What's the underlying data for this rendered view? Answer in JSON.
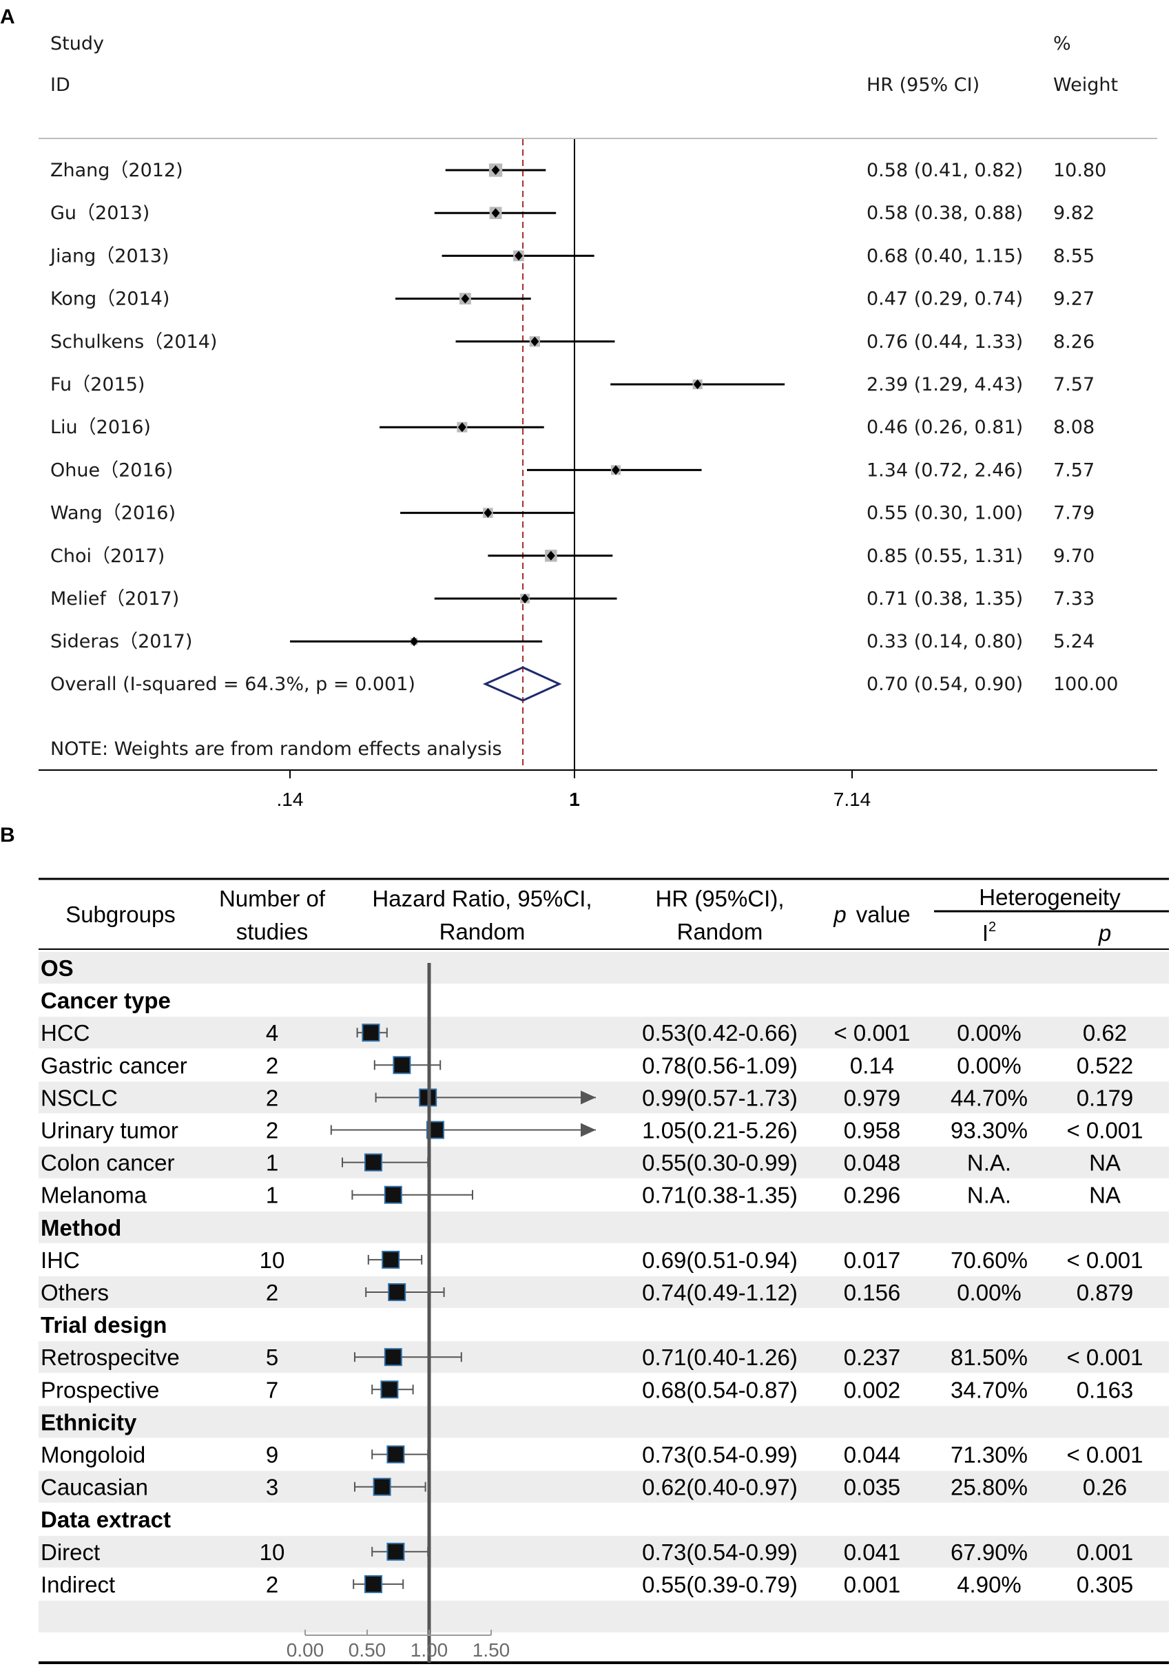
{
  "chart_data": [
    {
      "type": "forest",
      "panel_label": "A",
      "scale": "log",
      "header": {
        "study_line1": "Study",
        "study_line2": "ID",
        "ci_header": "HR (95% CI)",
        "weight_line1": "%",
        "weight_line2": "Weight"
      },
      "studies": [
        {
          "label": "Zhang（2012)",
          "hr": 0.58,
          "lo": 0.41,
          "hi": 0.82,
          "text": "0.58 (0.41, 0.82)",
          "weight": "10.80"
        },
        {
          "label": "Gu（2013)",
          "hr": 0.58,
          "lo": 0.38,
          "hi": 0.88,
          "text": "0.58 (0.38, 0.88)",
          "weight": "9.82"
        },
        {
          "label": "Jiang（2013)",
          "hr": 0.68,
          "lo": 0.4,
          "hi": 1.15,
          "text": "0.68 (0.40, 1.15)",
          "weight": "8.55"
        },
        {
          "label": "Kong（2014)",
          "hr": 0.47,
          "lo": 0.29,
          "hi": 0.74,
          "text": "0.47 (0.29, 0.74)",
          "weight": "9.27"
        },
        {
          "label": "Schulkens（2014)",
          "hr": 0.76,
          "lo": 0.44,
          "hi": 1.33,
          "text": "0.76 (0.44, 1.33)",
          "weight": "8.26"
        },
        {
          "label": "Fu（2015)",
          "hr": 2.39,
          "lo": 1.29,
          "hi": 4.43,
          "text": "2.39 (1.29, 4.43)",
          "weight": "7.57"
        },
        {
          "label": "Liu（2016)",
          "hr": 0.46,
          "lo": 0.26,
          "hi": 0.81,
          "text": "0.46 (0.26, 0.81)",
          "weight": "8.08"
        },
        {
          "label": "Ohue（2016)",
          "hr": 1.34,
          "lo": 0.72,
          "hi": 2.46,
          "text": "1.34 (0.72, 2.46)",
          "weight": "7.57"
        },
        {
          "label": "Wang（2016)",
          "hr": 0.55,
          "lo": 0.3,
          "hi": 1.0,
          "text": "0.55 (0.30, 1.00)",
          "weight": "7.79"
        },
        {
          "label": "Choi（2017)",
          "hr": 0.85,
          "lo": 0.55,
          "hi": 1.31,
          "text": "0.85 (0.55, 1.31)",
          "weight": "9.70"
        },
        {
          "label": "Melief（2017)",
          "hr": 0.71,
          "lo": 0.38,
          "hi": 1.35,
          "text": "0.71 (0.38, 1.35)",
          "weight": "7.33"
        },
        {
          "label": "Sideras（2017)",
          "hr": 0.33,
          "lo": 0.14,
          "hi": 0.8,
          "text": "0.33 (0.14, 0.80)",
          "weight": "5.24"
        }
      ],
      "overall": {
        "label": "Overall  (I-squared = 64.3%, p = 0.001)",
        "hr": 0.7,
        "lo": 0.54,
        "hi": 0.9,
        "text": "0.70 (0.54, 0.90)",
        "weight": "100.00"
      },
      "note": "NOTE: Weights are from random effects analysis",
      "axis_ticks": [
        {
          "value": 0.14,
          "label": ".14"
        },
        {
          "value": 1,
          "label": "1"
        },
        {
          "value": 7.14,
          "label": "7.14"
        }
      ],
      "xlim": [
        0.14,
        7.14
      ],
      "colors": {
        "overall_diamond": "#1f2a6b",
        "null_line": "#000000",
        "pooled_line": "#a52a2a",
        "weight_box": "#b9b9b9"
      }
    },
    {
      "type": "forest_table",
      "panel_label": "B",
      "scale": "linear",
      "columns": {
        "subgroups": "Subgroups",
        "n_line1": "Number of",
        "n_line2": "studies",
        "plot_line1": "Hazard Ratio, 95%CI,",
        "plot_line2": "Random",
        "hr_line1": "HR (95%CI),",
        "hr_line2": "Random",
        "p_italic": "p",
        "p_rest": "value",
        "heterogeneity": "Heterogeneity",
        "i2_base": "I",
        "i2_sup": "2",
        "het_p": "p"
      },
      "rows": [
        {
          "kind": "header",
          "label": "OS"
        },
        {
          "kind": "header",
          "label": "Cancer type"
        },
        {
          "kind": "data",
          "label": "HCC",
          "n": "4",
          "hr": 0.53,
          "lo": 0.42,
          "hi": 0.66,
          "ci": "0.53(0.42-0.66)",
          "p": "< 0.001",
          "i2": "0.00%",
          "hp": "0.62"
        },
        {
          "kind": "data",
          "label": "Gastric cancer",
          "n": "2",
          "hr": 0.78,
          "lo": 0.56,
          "hi": 1.09,
          "ci": "0.78(0.56-1.09)",
          "p": "0.14",
          "i2": "0.00%",
          "hp": "0.522"
        },
        {
          "kind": "data",
          "label": "NSCLC",
          "n": "2",
          "hr": 0.99,
          "lo": 0.57,
          "hi": 1.73,
          "arrow": true,
          "ci": "0.99(0.57-1.73)",
          "p": "0.979",
          "i2": "44.70%",
          "hp": "0.179"
        },
        {
          "kind": "data",
          "label": "Urinary tumor",
          "n": "2",
          "hr": 1.05,
          "lo": 0.21,
          "hi": 5.26,
          "arrow": true,
          "ci": "1.05(0.21-5.26)",
          "p": "0.958",
          "i2": "93.30%",
          "hp": "< 0.001"
        },
        {
          "kind": "data",
          "label": "Colon cancer",
          "n": "1",
          "hr": 0.55,
          "lo": 0.3,
          "hi": 0.99,
          "ci": "0.55(0.30-0.99)",
          "p": "0.048",
          "i2": "N.A.",
          "hp": "NA"
        },
        {
          "kind": "data",
          "label": "Melanoma",
          "n": "1",
          "hr": 0.71,
          "lo": 0.38,
          "hi": 1.35,
          "ci": "0.71(0.38-1.35)",
          "p": "0.296",
          "i2": "N.A.",
          "hp": "NA"
        },
        {
          "kind": "header",
          "label": "Method"
        },
        {
          "kind": "data",
          "label": "IHC",
          "n": "10",
          "hr": 0.69,
          "lo": 0.51,
          "hi": 0.94,
          "ci": "0.69(0.51-0.94)",
          "p": "0.017",
          "i2": "70.60%",
          "hp": "< 0.001"
        },
        {
          "kind": "data",
          "label": "Others",
          "n": "2",
          "hr": 0.74,
          "lo": 0.49,
          "hi": 1.12,
          "ci": "0.74(0.49-1.12)",
          "p": "0.156",
          "i2": "0.00%",
          "hp": "0.879"
        },
        {
          "kind": "header",
          "label": "Trial design"
        },
        {
          "kind": "data",
          "label": "Retrospecitve",
          "n": "5",
          "hr": 0.71,
          "lo": 0.4,
          "hi": 1.26,
          "ci": "0.71(0.40-1.26)",
          "p": "0.237",
          "i2": "81.50%",
          "hp": "< 0.001"
        },
        {
          "kind": "data",
          "label": "Prospective",
          "n": "7",
          "hr": 0.68,
          "lo": 0.54,
          "hi": 0.87,
          "ci": "0.68(0.54-0.87)",
          "p": "0.002",
          "i2": "34.70%",
          "hp": "0.163"
        },
        {
          "kind": "header",
          "label": "Ethnicity"
        },
        {
          "kind": "data",
          "label": "Mongoloid",
          "n": "9",
          "hr": 0.73,
          "lo": 0.54,
          "hi": 0.99,
          "ci": "0.73(0.54-0.99)",
          "p": "0.044",
          "i2": "71.30%",
          "hp": "< 0.001"
        },
        {
          "kind": "data",
          "label": "Caucasian",
          "n": "3",
          "hr": 0.62,
          "lo": 0.4,
          "hi": 0.97,
          "ci": "0.62(0.40-0.97)",
          "p": "0.035",
          "i2": "25.80%",
          "hp": "0.26"
        },
        {
          "kind": "header",
          "label": "Data extract"
        },
        {
          "kind": "data",
          "label": "Direct",
          "n": "10",
          "hr": 0.73,
          "lo": 0.54,
          "hi": 0.99,
          "ci": "0.73(0.54-0.99)",
          "p": "0.041",
          "i2": "67.90%",
          "hp": "0.001"
        },
        {
          "kind": "data",
          "label": "Indirect",
          "n": "2",
          "hr": 0.55,
          "lo": 0.39,
          "hi": 0.79,
          "ci": "0.55(0.39-0.79)",
          "p": "0.001",
          "i2": "4.90%",
          "hp": "0.305"
        }
      ],
      "axis_ticks": [
        "0.00",
        "0.50",
        "1.00",
        "1.50"
      ],
      "xlim": [
        0,
        1.5
      ],
      "colors": {
        "marker": "#111111",
        "marker_border": "#2e6fa8",
        "row_shade": "#ededed",
        "null_line": "#555555",
        "whisker": "#555555"
      }
    }
  ]
}
